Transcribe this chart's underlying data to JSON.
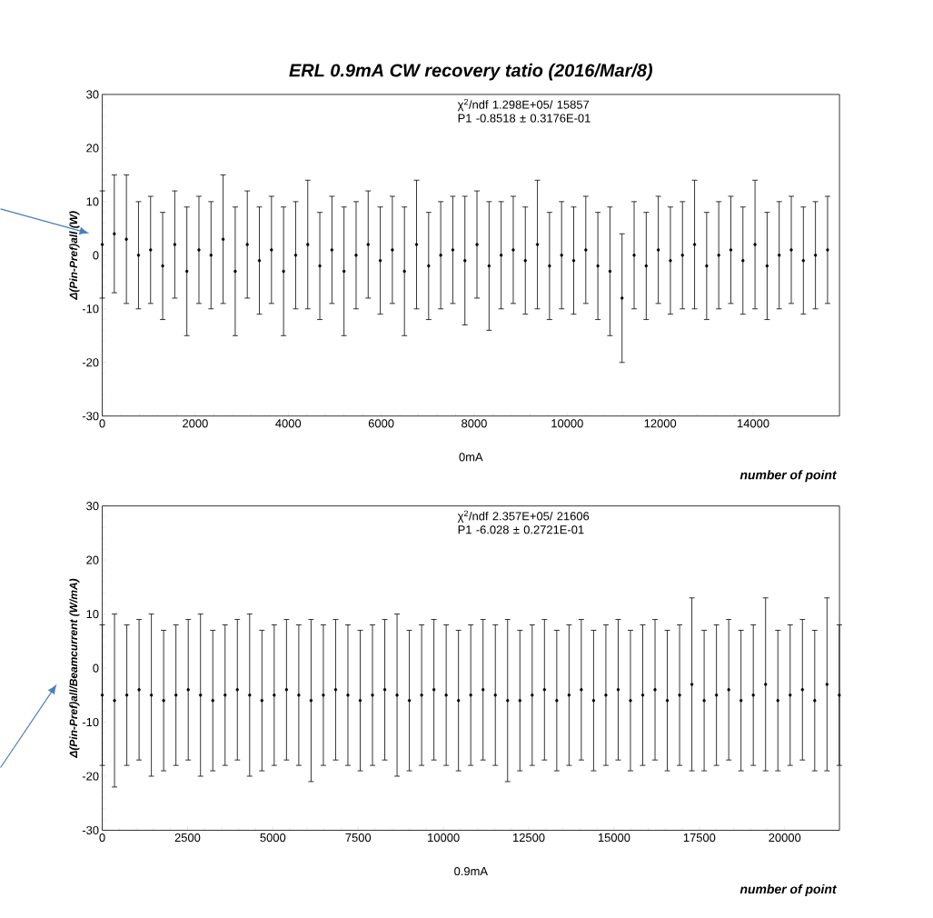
{
  "chart_data": [
    {
      "type": "scatter",
      "title": "ERL 0.9mA CW recovery tatio (2016/Mar/8)",
      "xlabel": "number of point",
      "ylabel": "Δ(Pin-Pref)all (W)",
      "color": "#000000",
      "marker": "circle",
      "x": [
        0,
        260,
        520,
        780,
        1040,
        1300,
        1560,
        1820,
        2080,
        2340,
        2600,
        2860,
        3120,
        3380,
        3640,
        3900,
        4160,
        4420,
        4680,
        4940,
        5200,
        5460,
        5720,
        5980,
        6240,
        6500,
        6760,
        7020,
        7280,
        7540,
        7800,
        8060,
        8320,
        8580,
        8840,
        9100,
        9360,
        9620,
        9880,
        10140,
        10400,
        10660,
        10920,
        11180,
        11440,
        11700,
        11960,
        12220,
        12480,
        12740,
        13000,
        13260,
        13520,
        13780,
        14040,
        14300,
        14560,
        14820,
        15080,
        15340,
        15600
      ],
      "values": [
        2,
        4,
        3,
        0,
        1,
        -2,
        2,
        -3,
        1,
        0,
        3,
        -3,
        2,
        -1,
        1,
        -3,
        0,
        2,
        -2,
        1,
        -3,
        0,
        2,
        -1,
        1,
        -3,
        2,
        -2,
        0,
        1,
        -1,
        2,
        -2,
        0,
        1,
        -1,
        2,
        -2,
        0,
        -1,
        1,
        -2,
        -3,
        -8,
        0,
        -2,
        1,
        -1,
        0,
        2,
        -2,
        0,
        1,
        -1,
        2,
        -2,
        0,
        1,
        -1,
        0,
        1
      ],
      "errors": [
        10,
        11,
        12,
        10,
        10,
        10,
        10,
        12,
        10,
        10,
        12,
        12,
        10,
        10,
        10,
        12,
        10,
        12,
        10,
        10,
        12,
        10,
        10,
        10,
        10,
        12,
        12,
        10,
        10,
        10,
        12,
        10,
        12,
        10,
        10,
        10,
        12,
        10,
        10,
        10,
        10,
        10,
        12,
        12,
        10,
        10,
        10,
        10,
        10,
        12,
        10,
        10,
        10,
        10,
        12,
        10,
        10,
        10,
        10,
        10,
        10
      ],
      "xlim": [
        0,
        15857
      ],
      "ylim": [
        -30,
        30
      ],
      "xticks": [
        0,
        2000,
        4000,
        6000,
        8000,
        10000,
        12000,
        14000
      ],
      "yticks": [
        -30,
        -20,
        -10,
        0,
        10,
        20,
        30
      ],
      "annotations": [
        "χ$^{2}$/ndf 1.298E+05/ 15857",
        "P1 -0.8518 ± 0.3176E-01",
        "0mA"
      ]
    },
    {
      "type": "scatter",
      "xlabel": "number of point",
      "ylabel": "Δ(Pin-Pref)all/Beamcurrent  (W/mA)",
      "color": "#000000",
      "marker": "circle",
      "x": [
        0,
        360,
        720,
        1080,
        1440,
        1800,
        2160,
        2520,
        2880,
        3240,
        3600,
        3960,
        4320,
        4680,
        5040,
        5400,
        5760,
        6120,
        6480,
        6840,
        7200,
        7560,
        7920,
        8280,
        8640,
        9000,
        9360,
        9720,
        10080,
        10440,
        10800,
        11160,
        11520,
        11880,
        12240,
        12600,
        12960,
        13320,
        13680,
        14040,
        14400,
        14760,
        15120,
        15480,
        15840,
        16200,
        16560,
        16920,
        17280,
        17640,
        18000,
        18360,
        18720,
        19080,
        19440,
        19800,
        20160,
        20520,
        20880,
        21240,
        21600
      ],
      "values": [
        -5,
        -6,
        -5,
        -4,
        -5,
        -6,
        -5,
        -4,
        -5,
        -6,
        -5,
        -4,
        -5,
        -6,
        -5,
        -4,
        -5,
        -6,
        -5,
        -4,
        -5,
        -6,
        -5,
        -4,
        -5,
        -6,
        -5,
        -4,
        -5,
        -6,
        -5,
        -4,
        -5,
        -6,
        -6,
        -5,
        -4,
        -6,
        -5,
        -4,
        -6,
        -5,
        -4,
        -6,
        -5,
        -4,
        -6,
        -5,
        -3,
        -6,
        -5,
        -4,
        -6,
        -5,
        -3,
        -6,
        -5,
        -4,
        -6,
        -3,
        -5
      ],
      "errors": [
        13,
        16,
        13,
        13,
        15,
        13,
        13,
        13,
        15,
        13,
        13,
        13,
        15,
        13,
        13,
        13,
        13,
        15,
        13,
        13,
        13,
        13,
        13,
        13,
        15,
        13,
        13,
        13,
        13,
        13,
        13,
        13,
        13,
        15,
        13,
        13,
        13,
        13,
        13,
        13,
        13,
        13,
        13,
        13,
        13,
        13,
        13,
        13,
        16,
        13,
        13,
        13,
        13,
        13,
        16,
        13,
        13,
        13,
        13,
        16,
        13
      ],
      "xlim": [
        0,
        21606
      ],
      "ylim": [
        -30,
        30
      ],
      "xticks": [
        0,
        2500,
        5000,
        7500,
        10000,
        12500,
        15000,
        17500,
        20000
      ],
      "yticks": [
        -30,
        -20,
        -10,
        0,
        10,
        20,
        30
      ],
      "annotations": [
        "χ$^{2}$/ndf 2.357E+05/ 21606",
        "P1 -6.028 ± 0.2721E-01",
        "0.9mA"
      ]
    }
  ]
}
